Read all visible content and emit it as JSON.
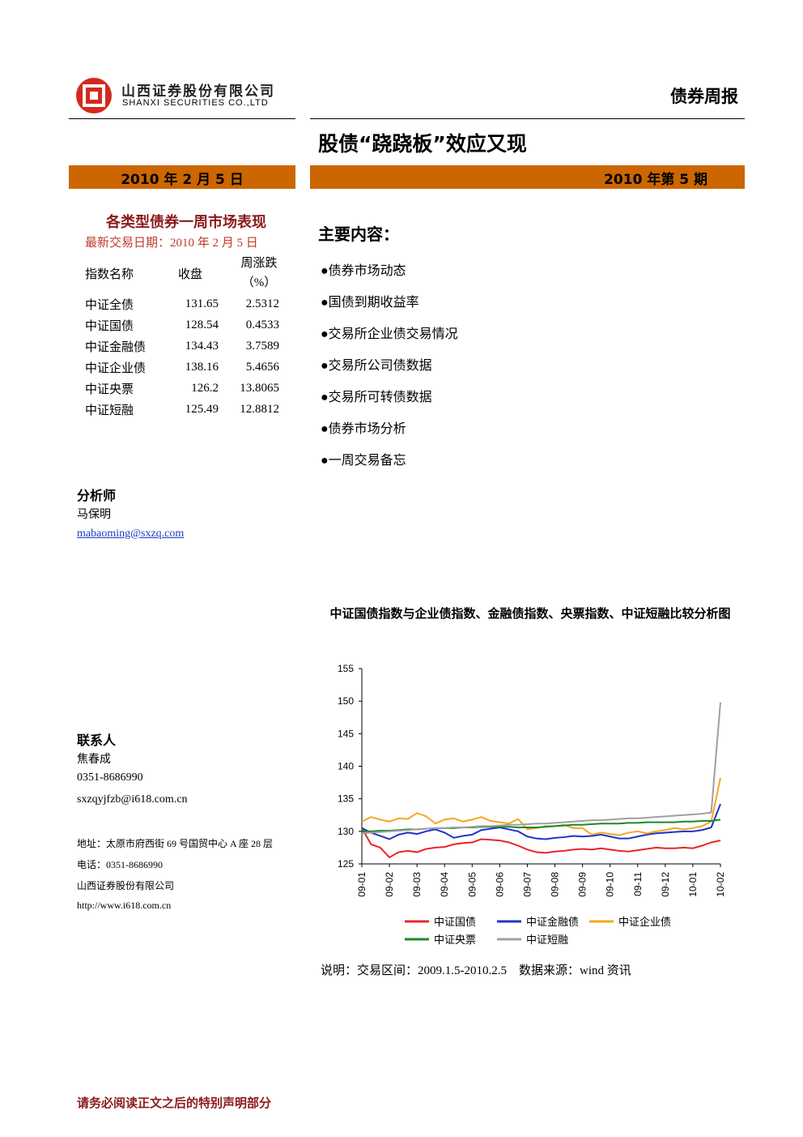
{
  "header": {
    "company_cn": "山西证券股份有限公司",
    "company_en": "SHANXI SECURITIES CO.,LTD",
    "report_type": "债券周报"
  },
  "title": "股债“跷跷板”效应又现",
  "date_bar": {
    "date": "2010 年 2 月 5 日",
    "issue": "2010 年第 5 期"
  },
  "market_table": {
    "title": "各类型债券一周市场表现",
    "subtitle": "最新交易日期：2010 年 2 月 5 日",
    "headers": [
      "指数名称",
      "收盘",
      "周涨跌（%）"
    ],
    "rows": [
      [
        "中证全债",
        131.65,
        2.5312
      ],
      [
        "中证国债",
        128.54,
        0.4533
      ],
      [
        "中证金融债",
        134.43,
        3.7589
      ],
      [
        "中证企业债",
        138.16,
        5.4656
      ],
      [
        "中证央票",
        126.2,
        13.8065
      ],
      [
        "中证短融",
        125.49,
        12.8812
      ]
    ]
  },
  "contents": {
    "heading": "主要内容：",
    "items": [
      "债券市场动态",
      "国债到期收益率",
      "交易所企业债交易情况",
      "交易所公司债数据",
      "交易所可转债数据",
      "债券市场分析",
      "一周交易备忘"
    ]
  },
  "analyst": {
    "label": "分析师",
    "name": "马保明",
    "email": "mabaoming@sxzq.com"
  },
  "contact": {
    "label": "联系人",
    "name": "焦春成",
    "phone": "0351-8686990",
    "email": "sxzqyjfzb@i618.com.cn"
  },
  "address": [
    "地址：太原市府西街 69 号国贸中心 A 座 28 层",
    "电话：0351-8686990",
    "山西证券股份有限公司",
    "http://www.i618.com.cn"
  ],
  "chart_data": {
    "type": "line",
    "title": "中证国债指数与企业债指数、金融债指数、央票指数、中证短融比较分析图",
    "categories": [
      "09-01",
      null,
      null,
      "09-02",
      null,
      null,
      "09-03",
      null,
      null,
      "09-04",
      null,
      null,
      "09-05",
      null,
      null,
      "09-06",
      null,
      null,
      "09-07",
      null,
      null,
      "09-08",
      null,
      null,
      "09-09",
      null,
      null,
      "09-10",
      null,
      null,
      "09-11",
      null,
      null,
      "09-12",
      null,
      null,
      "10-01",
      null,
      null,
      "10-02"
    ],
    "ylim": [
      125,
      155
    ],
    "yticks": [
      125,
      130,
      135,
      140,
      145,
      150,
      155
    ],
    "series": [
      {
        "name": "中证国债",
        "color": "#e8252b",
        "values": [
          130.5,
          128,
          127.5,
          126,
          126.8,
          127,
          126.8,
          127.3,
          127.5,
          127.6,
          128,
          128.2,
          128.3,
          128.8,
          128.7,
          128.6,
          128.3,
          127.8,
          127.2,
          126.8,
          126.7,
          126.9,
          127,
          127.2,
          127.3,
          127.2,
          127.4,
          127.2,
          127,
          126.9,
          127.1,
          127.3,
          127.5,
          127.4,
          127.4,
          127.5,
          127.4,
          127.8,
          128.3,
          128.6
        ]
      },
      {
        "name": "中证金融债",
        "color": "#1f33c8",
        "values": [
          130.5,
          129.8,
          129.3,
          128.8,
          129.5,
          129.8,
          129.6,
          130,
          130.3,
          129.8,
          129,
          129.3,
          129.5,
          130.2,
          130.4,
          130.6,
          130.3,
          130,
          129.2,
          128.9,
          128.8,
          129,
          129.1,
          129.3,
          129.2,
          129.3,
          129.5,
          129.2,
          128.9,
          128.9,
          129.2,
          129.5,
          129.7,
          129.8,
          129.9,
          130,
          130,
          130.2,
          130.6,
          134.2
        ]
      },
      {
        "name": "中证企业债",
        "color": "#f5a623",
        "values": [
          131.5,
          132.2,
          131.8,
          131.5,
          132,
          131.9,
          132.8,
          132.3,
          131.2,
          131.8,
          132,
          131.5,
          131.8,
          132.2,
          131.6,
          131.4,
          131.2,
          131.9,
          130.3,
          130.5,
          130.8,
          130.8,
          131,
          130.5,
          130.5,
          129.5,
          129.8,
          129.6,
          129.4,
          129.8,
          130,
          129.7,
          130,
          130.2,
          130.5,
          130.3,
          130.5,
          130.8,
          131.5,
          138.2
        ]
      },
      {
        "name": "中证央票",
        "color": "#1a8a2a",
        "values": [
          130,
          130,
          130.1,
          130.1,
          130.2,
          130.3,
          130.3,
          130.4,
          130.5,
          130.5,
          130.5,
          130.6,
          130.6,
          130.7,
          130.7,
          130.7,
          130.7,
          130.6,
          130.6,
          130.6,
          130.7,
          130.8,
          130.9,
          131,
          131,
          131.1,
          131.2,
          131.2,
          131.2,
          131.3,
          131.3,
          131.4,
          131.4,
          131.4,
          131.4,
          131.5,
          131.5,
          131.6,
          131.6,
          131.8
        ]
      },
      {
        "name": "中证短融",
        "color": "#a0a0a0",
        "values": [
          129.7,
          129.8,
          129.9,
          130,
          130.1,
          130.2,
          130.3,
          130.4,
          130.5,
          130.5,
          130.6,
          130.6,
          130.7,
          130.8,
          130.8,
          130.9,
          131,
          131,
          131.1,
          131.2,
          131.2,
          131.3,
          131.4,
          131.5,
          131.6,
          131.7,
          131.7,
          131.8,
          131.9,
          132,
          132,
          132.1,
          132.2,
          132.3,
          132.4,
          132.5,
          132.6,
          132.7,
          132.9,
          149.8
        ]
      }
    ]
  },
  "chart_note": "说明：交易区间：2009.1.5-2010.2.5    数据来源：wind 资讯",
  "footer": "请务必阅读正文之后的特别声明部分"
}
